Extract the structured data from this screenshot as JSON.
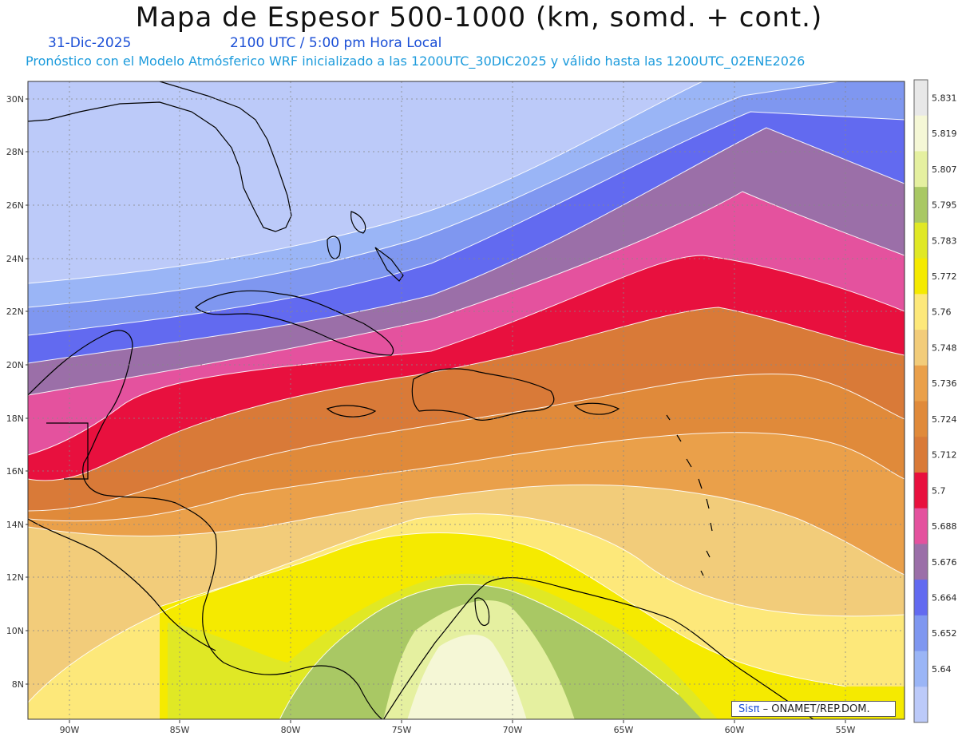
{
  "title": "Mapa de Espesor 500-1000 (km, somd. + cont.)",
  "date_label": "31-Dic-2025",
  "time_label": "2100 UTC / 5:00 pm Hora Local",
  "forecast_label": "Pronóstico con el Modelo Atmósferico WRF inicializado a las 1200UTC_30DIC2025 y válido hasta las  1200UTC_02ENE2026",
  "credit": {
    "brand": "Sisπ",
    "text": " – ONAMET/REP.DOM."
  },
  "lat_ticks": [
    "30N",
    "28N",
    "26N",
    "24N",
    "22N",
    "20N",
    "18N",
    "16N",
    "14N",
    "12N",
    "10N",
    "8N"
  ],
  "lon_ticks": [
    "90W",
    "85W",
    "80W",
    "75W",
    "70W",
    "65W",
    "60W",
    "55W"
  ],
  "colorbar": {
    "labels": [
      "5.831",
      "5.819",
      "5.807",
      "5.795",
      "5.783",
      "5.772",
      "5.76",
      "5.748",
      "5.736",
      "5.724",
      "5.712",
      "5.7",
      "5.688",
      "5.676",
      "5.664",
      "5.652",
      "5.64"
    ],
    "colors": [
      "#e8e8e8",
      "#f5f7d6",
      "#e5f0a0",
      "#a9c864",
      "#e0e825",
      "#f5ea00",
      "#fde87a",
      "#f2cc7a",
      "#eaa04a",
      "#e08a3a",
      "#d97a38",
      "#e8103e",
      "#e4529e",
      "#9b6fa8",
      "#626af0",
      "#7f97f0",
      "#9ab5f6",
      "#bccaf9"
    ]
  },
  "land_fill_color": "#b7c8fb"
}
